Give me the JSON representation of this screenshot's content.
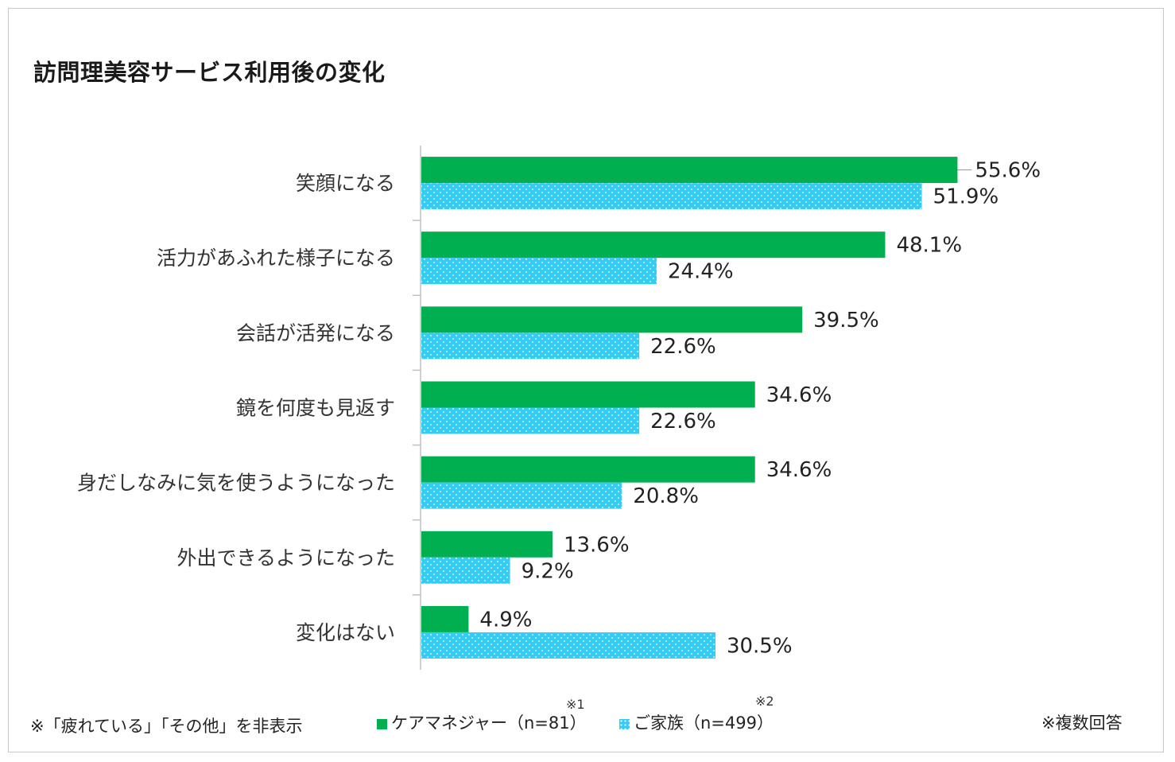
{
  "chart_data": {
    "type": "bar",
    "orientation": "horizontal",
    "title": "訪問理美容サービス利用後の変化",
    "categories": [
      "笑顔になる",
      "活力があふれた様子になる",
      "会話が活発になる",
      "鏡を何度も見返す",
      "身だしなみに気を使うようになった",
      "外出できるようになった",
      "変化はない"
    ],
    "series": [
      {
        "name": "ケアマネジャー（n=81）",
        "note": "※1",
        "color": "#00b050",
        "pattern": "solid",
        "values": [
          55.6,
          48.1,
          39.5,
          34.6,
          34.6,
          13.6,
          4.9
        ]
      },
      {
        "name": "ご家族（n=499）",
        "note": "※2",
        "color": "#33ccf5",
        "pattern": "dotted",
        "values": [
          51.9,
          24.4,
          22.6,
          22.6,
          20.8,
          9.2,
          30.5
        ]
      }
    ],
    "value_suffix": "%",
    "xlim": [
      0,
      100
    ],
    "grid": false,
    "legend": "bottom"
  },
  "footnotes": {
    "left": "※「疲れている」「その他」を非表示",
    "right": "※複数回答"
  }
}
